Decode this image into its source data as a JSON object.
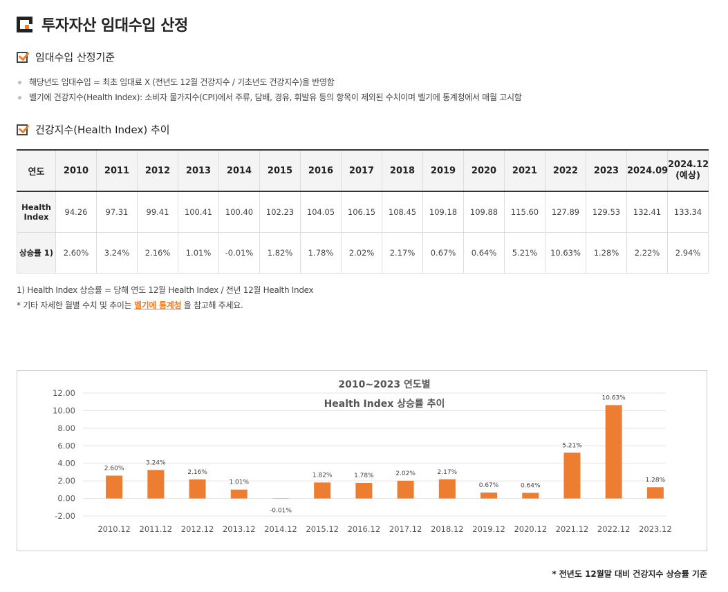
{
  "page": {
    "title": "투자자산 임대수입 산정"
  },
  "section1": {
    "heading": "임대수입 산정기준",
    "bullets": [
      "해당년도 임대수입 = 최초 임대료 X (전년도 12월 건강지수 / 기초년도 건강지수)을 반영함",
      "벨기에 건강지수(Health Index): 소비자 물가지수(CPI)에서 주류, 담배, 경유, 휘발유 등의 항목이 제외된 수치이며 벨기에 통계청에서 매월 고시함"
    ]
  },
  "section2": {
    "heading": "건강지수(Health Index) 추이"
  },
  "table": {
    "header_label": "연도",
    "years": [
      "2010",
      "2011",
      "2012",
      "2013",
      "2014",
      "2015",
      "2016",
      "2017",
      "2018",
      "2019",
      "2020",
      "2021",
      "2022",
      "2023",
      "2024.09"
    ],
    "last_year_line1": "2024.12",
    "last_year_line2": "(예상)",
    "row1_label_line1": "Health",
    "row1_label_line2": "Index",
    "row1": [
      "94.26",
      "97.31",
      "99.41",
      "100.41",
      "100.40",
      "102.23",
      "104.05",
      "106.15",
      "108.45",
      "109.18",
      "109.88",
      "115.60",
      "127.89",
      "129.53",
      "132.41",
      "133.34"
    ],
    "row2_label": "상승률 1)",
    "row2": [
      "2.60%",
      "3.24%",
      "2.16%",
      "1.01%",
      "-0.01%",
      "1.82%",
      "1.78%",
      "2.02%",
      "2.17%",
      "0.67%",
      "0.64%",
      "5.21%",
      "10.63%",
      "1.28%",
      "2.22%",
      "2.94%"
    ]
  },
  "notes": {
    "note1": "1) Health Index 상승률 = 당해 연도 12월 Health Index / 전년 12월 Health Index",
    "note2_prefix": "* 기타 자세한 월별 수치 및 추이는 ",
    "note2_link": "벨기에 통계청",
    "note2_suffix": " 을 참고해 주세요."
  },
  "chart_data": {
    "type": "bar",
    "title": "2010~2023 연도별",
    "subtitle": "Health Index 상승률 추이",
    "categories": [
      "2010.12",
      "2011.12",
      "2012.12",
      "2013.12",
      "2014.12",
      "2015.12",
      "2016.12",
      "2017.12",
      "2018.12",
      "2019.12",
      "2020.12",
      "2021.12",
      "2022.12",
      "2023.12"
    ],
    "values": [
      2.6,
      3.24,
      2.16,
      1.01,
      -0.01,
      1.82,
      1.78,
      2.02,
      2.17,
      0.67,
      0.64,
      5.21,
      10.63,
      1.28
    ],
    "data_labels": [
      "2.60%",
      "3.24%",
      "2.16%",
      "1.01%",
      "-0.01%",
      "1.82%",
      "1.78%",
      "2.02%",
      "2.17%",
      "0.67%",
      "0.64%",
      "5.21%",
      "10.63%",
      "1.28%"
    ],
    "yticks": [
      "12.00",
      "10.00",
      "8.00",
      "6.00",
      "4.00",
      "2.00",
      "0.00",
      "-2.00"
    ],
    "ylim": [
      -2,
      12
    ],
    "grid": true,
    "bar_color": "#ed7d31"
  },
  "footer": {
    "note": "* 전년도 12월말 대비 건강지수 상승률 기준"
  },
  "colors": {
    "accent": "#f07c26"
  }
}
